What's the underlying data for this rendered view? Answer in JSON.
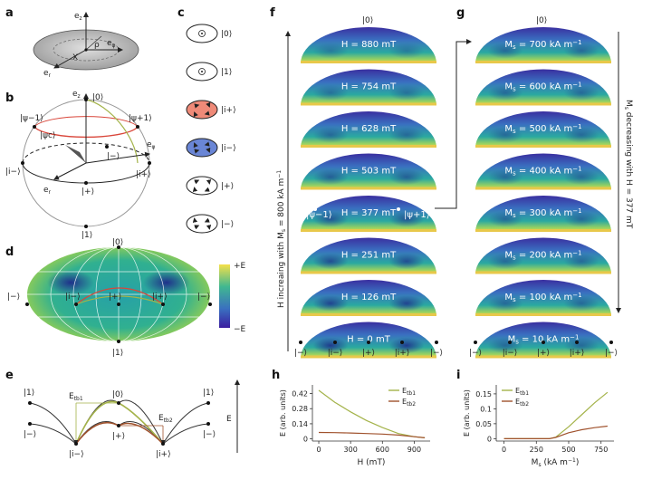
{
  "panels": {
    "a": "a",
    "b": "b",
    "c": "c",
    "d": "d",
    "e": "e",
    "f": "f",
    "g": "g",
    "h": "h",
    "i": "i"
  },
  "panel_a": {
    "ez": "e",
    "ez_sub": "z",
    "er": "e",
    "er_sub": "r",
    "ephi": "e",
    "ephi_sub": "φ",
    "X": "X",
    "rho": "ρ"
  },
  "panel_b": {
    "ez": "e",
    "ez_sub": "z",
    "ket0": "|0⟩",
    "ket1": "|1⟩",
    "psi_m1": "|ψ−1⟩",
    "psi_p1": "|ψ+1⟩",
    "psi_c": "|ψc⟩",
    "iminus": "|i−⟩",
    "iplus": "|i+⟩",
    "minus": "|−⟩",
    "plus": "|+⟩",
    "ephi": "e",
    "ephi_sub": "φ",
    "er": "e",
    "er_sub": "r"
  },
  "panel_c": {
    "states": [
      "|0⟩",
      "|1⟩",
      "|i+⟩",
      "|i−⟩",
      "|+⟩",
      "|−⟩"
    ],
    "fills": [
      "#ffffff",
      "#ffffff",
      "#ef8a78",
      "#6a86d6",
      "#ffffff",
      "#ffffff"
    ]
  },
  "panel_d": {
    "top": "|0⟩",
    "bottom": "|1⟩",
    "left": "|−⟩",
    "right": "|−⟩",
    "iminus": "|i−⟩",
    "plus": "|+⟩",
    "iplus": "|i+⟩",
    "cbar_top": "+E",
    "cbar_bottom": "−E"
  },
  "panel_e": {
    "left_top": "|1⟩",
    "left_bot": "|−⟩",
    "right_top": "|1⟩",
    "right_bot": "|−⟩",
    "iminus": "|i−⟩",
    "ket0": "|0⟩",
    "plus": "|+⟩",
    "iplus": "|i+⟩",
    "etb1": "E",
    "etb1_sub": "tb1",
    "etb2": "E",
    "etb2_sub": "tb2",
    "axis": "E"
  },
  "panel_f": {
    "top_label": "|0⟩",
    "side_label": "H increaing with M",
    "side_label_sub": "s",
    "side_label_tail": " = 800 kA m",
    "side_label_exp": "−1",
    "fields": [
      "H = 880 mT",
      "H = 754 mT",
      "H = 628 mT",
      "H = 503 mT",
      "H = 377 mT",
      "H = 251 mT",
      "H = 126 mT",
      "H = 0 mT"
    ],
    "psi_m1": "|ψ−1⟩",
    "psi_p1": "|ψ+1⟩",
    "xticks": [
      "|−⟩",
      "|i−⟩",
      "|+⟩",
      "|i+⟩",
      "|−⟩"
    ]
  },
  "panel_g": {
    "top_label": "|0⟩",
    "side_label": "M",
    "side_label_sub": "s",
    "side_label_tail": " decreasing with H = 377 mT",
    "ms_prefix": "M",
    "ms_sub": "s",
    "values": [
      " = 700 kA m",
      " = 600 kA m",
      " = 500 kA m",
      " = 400 kA m",
      " = 300 kA m",
      " = 200 kA m",
      " = 100 kA m",
      " = 10 kA m"
    ],
    "unit_exp": "−1",
    "xticks": [
      "|−⟩",
      "|i−⟩",
      "|+⟩",
      "|i+⟩",
      "|−⟩"
    ]
  },
  "chart_data": [
    {
      "type": "line",
      "panel": "h",
      "xlabel": "H (mT)",
      "ylabel": "E (arb. units)",
      "xticks": [
        0,
        300,
        600,
        900
      ],
      "yticks": [
        0,
        0.14,
        0.28,
        0.42
      ],
      "xlim": [
        -60,
        1050
      ],
      "ylim": [
        -0.02,
        0.5
      ],
      "series": [
        {
          "name": "Etb1",
          "name_main": "E",
          "name_sub": "tb1",
          "color": "#a4b34a",
          "x": [
            0,
            150,
            300,
            450,
            600,
            750,
            900,
            1000
          ],
          "y": [
            0.45,
            0.34,
            0.25,
            0.17,
            0.105,
            0.05,
            0.02,
            0.01
          ]
        },
        {
          "name": "Etb2",
          "name_main": "E",
          "name_sub": "tb2",
          "color": "#a0522d",
          "x": [
            0,
            150,
            300,
            450,
            600,
            750,
            900,
            1000
          ],
          "y": [
            0.06,
            0.058,
            0.055,
            0.05,
            0.045,
            0.035,
            0.02,
            0.01
          ]
        }
      ],
      "legend": "top-right"
    },
    {
      "type": "line",
      "panel": "i",
      "xlabel": "M",
      "xlabel_sub": "s",
      "xlabel_tail": " (kA m",
      "xlabel_exp": "−1",
      "xlabel_close": ")",
      "ylabel": "E (arb. units)",
      "xticks": [
        0,
        250,
        500,
        750
      ],
      "yticks": [
        0,
        0.05,
        0.1,
        0.15
      ],
      "xlim": [
        -60,
        850
      ],
      "ylim": [
        -0.008,
        0.18
      ],
      "series": [
        {
          "name": "Etb1",
          "name_main": "E",
          "name_sub": "tb1",
          "color": "#a4b34a",
          "x": [
            0,
            100,
            200,
            300,
            350,
            400,
            500,
            600,
            700,
            800
          ],
          "y": [
            0,
            0,
            0,
            0,
            0,
            0.005,
            0.04,
            0.08,
            0.12,
            0.155
          ]
        },
        {
          "name": "Etb2",
          "name_main": "E",
          "name_sub": "tb2",
          "color": "#a0522d",
          "x": [
            0,
            100,
            200,
            300,
            350,
            400,
            500,
            600,
            700,
            800
          ],
          "y": [
            0,
            0,
            0,
            0,
            0,
            0.004,
            0.02,
            0.03,
            0.037,
            0.042
          ]
        }
      ],
      "legend": "top-left"
    }
  ]
}
